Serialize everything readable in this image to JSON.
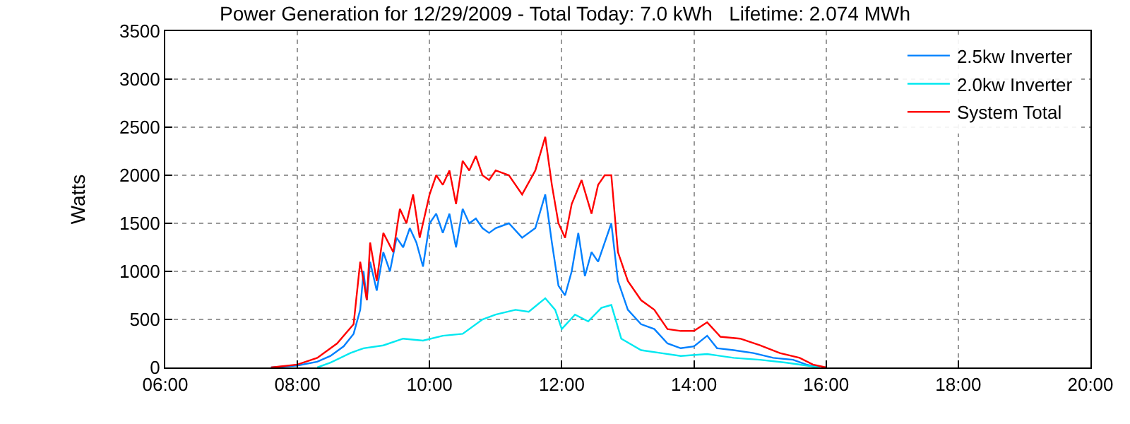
{
  "chart_data": {
    "type": "line",
    "title": "Power Generation for 12/29/2009 - Total Today: 7.0 kWh   Lifetime: 2.074 MWh",
    "ylabel": "Watts",
    "xlim": [
      6,
      20
    ],
    "xticks": [
      {
        "value": 6,
        "label": "06:00"
      },
      {
        "value": 8,
        "label": "08:00"
      },
      {
        "value": 10,
        "label": "10:00"
      },
      {
        "value": 12,
        "label": "12:00"
      },
      {
        "value": 14,
        "label": "14:00"
      },
      {
        "value": 16,
        "label": "16:00"
      },
      {
        "value": 18,
        "label": "18:00"
      },
      {
        "value": 20,
        "label": "20:00"
      }
    ],
    "ylim": [
      0,
      3500
    ],
    "yticks": [
      0,
      500,
      1000,
      1500,
      2000,
      2500,
      3000,
      3500
    ],
    "grid": true,
    "legend": "top right",
    "line_style": "solid",
    "series": [
      {
        "name": "2.5kw Inverter",
        "color": "#0080ff",
        "x": [
          7.6,
          8.0,
          8.3,
          8.5,
          8.7,
          8.85,
          8.95,
          9.0,
          9.05,
          9.1,
          9.2,
          9.3,
          9.4,
          9.5,
          9.6,
          9.7,
          9.8,
          9.9,
          10.0,
          10.1,
          10.2,
          10.3,
          10.4,
          10.5,
          10.6,
          10.7,
          10.8,
          10.9,
          11.0,
          11.2,
          11.4,
          11.6,
          11.75,
          11.85,
          11.95,
          12.05,
          12.15,
          12.25,
          12.35,
          12.45,
          12.55,
          12.65,
          12.75,
          12.85,
          13.0,
          13.2,
          13.4,
          13.6,
          13.8,
          14.0,
          14.2,
          14.35,
          14.6,
          14.9,
          15.2,
          15.5,
          15.7,
          15.9
        ],
        "values": [
          0,
          20,
          60,
          120,
          220,
          350,
          600,
          1000,
          700,
          1100,
          800,
          1200,
          1000,
          1350,
          1250,
          1450,
          1300,
          1050,
          1500,
          1600,
          1400,
          1600,
          1250,
          1650,
          1500,
          1550,
          1450,
          1400,
          1450,
          1500,
          1350,
          1450,
          1800,
          1300,
          850,
          750,
          1000,
          1400,
          950,
          1200,
          1100,
          1300,
          1500,
          900,
          600,
          450,
          400,
          250,
          200,
          220,
          330,
          200,
          180,
          150,
          100,
          80,
          30,
          0
        ]
      },
      {
        "name": "2.0kw Inverter",
        "color": "#00e8f0",
        "x": [
          8.3,
          8.5,
          8.8,
          9.0,
          9.3,
          9.6,
          9.9,
          10.2,
          10.5,
          10.8,
          11.0,
          11.3,
          11.5,
          11.75,
          11.9,
          12.0,
          12.2,
          12.4,
          12.6,
          12.75,
          12.9,
          13.2,
          13.5,
          13.8,
          14.2,
          14.6,
          15.0,
          15.4,
          15.7,
          15.9
        ],
        "values": [
          0,
          50,
          150,
          200,
          230,
          300,
          280,
          330,
          350,
          500,
          550,
          600,
          580,
          720,
          600,
          400,
          550,
          480,
          620,
          650,
          300,
          180,
          150,
          120,
          140,
          100,
          80,
          50,
          20,
          0
        ]
      },
      {
        "name": "System Total",
        "color": "#ff0000",
        "x": [
          7.6,
          8.0,
          8.3,
          8.6,
          8.85,
          8.95,
          9.05,
          9.1,
          9.2,
          9.3,
          9.45,
          9.55,
          9.65,
          9.75,
          9.85,
          10.0,
          10.1,
          10.2,
          10.3,
          10.4,
          10.5,
          10.6,
          10.7,
          10.8,
          10.9,
          11.0,
          11.2,
          11.4,
          11.6,
          11.75,
          11.85,
          11.95,
          12.05,
          12.15,
          12.3,
          12.45,
          12.55,
          12.65,
          12.75,
          12.85,
          13.0,
          13.2,
          13.4,
          13.6,
          13.8,
          14.0,
          14.2,
          14.4,
          14.7,
          15.0,
          15.3,
          15.6,
          15.8,
          16.0
        ],
        "values": [
          0,
          30,
          100,
          250,
          450,
          1100,
          700,
          1300,
          900,
          1400,
          1200,
          1650,
          1500,
          1800,
          1350,
          1800,
          2000,
          1900,
          2050,
          1700,
          2150,
          2050,
          2200,
          2000,
          1950,
          2050,
          2000,
          1800,
          2050,
          2400,
          1900,
          1500,
          1350,
          1700,
          1950,
          1600,
          1900,
          2000,
          2000,
          1200,
          900,
          700,
          600,
          400,
          380,
          380,
          470,
          320,
          300,
          230,
          150,
          100,
          30,
          0
        ]
      }
    ]
  }
}
